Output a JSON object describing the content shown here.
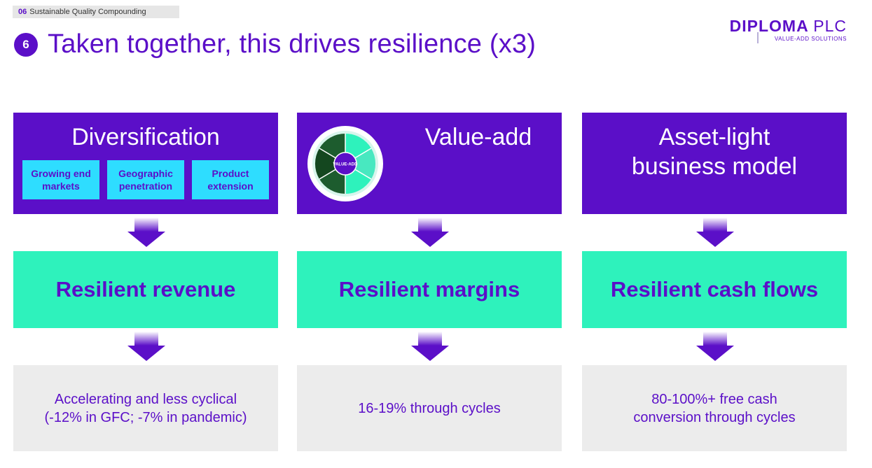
{
  "header": {
    "section_number": "06",
    "section_title": "Sustainable Quality Compounding",
    "step_number": "6",
    "title": "Taken together, this drives resilience (x3)"
  },
  "logo": {
    "main": "DIPLOMA",
    "suffix": "PLC",
    "tagline": "VALUE-ADD SOLUTIONS"
  },
  "columns": [
    {
      "top_title": "Diversification",
      "chips": [
        "Growing end markets",
        "Geographic penetration",
        "Product extension"
      ],
      "middle": "Resilient revenue",
      "bottom_line1": "Accelerating and less cyclical",
      "bottom_line2": "(-12% in GFC; -7% in pandemic)"
    },
    {
      "top_title": "Value-add",
      "wheel_center": "VALUE-ADD",
      "middle": "Resilient margins",
      "bottom_line1": "16-19% through cycles"
    },
    {
      "top_title_line1": "Asset-light",
      "top_title_line2": "business model",
      "middle": "Resilient cash flows",
      "bottom_line1": "80-100%+ free cash",
      "bottom_line2": "conversion through cycles"
    }
  ],
  "colors": {
    "brand_purple": "#5b0fc8",
    "mint": "#2ef2bc",
    "cyan": "#2eddff",
    "grey": "#ececec"
  }
}
